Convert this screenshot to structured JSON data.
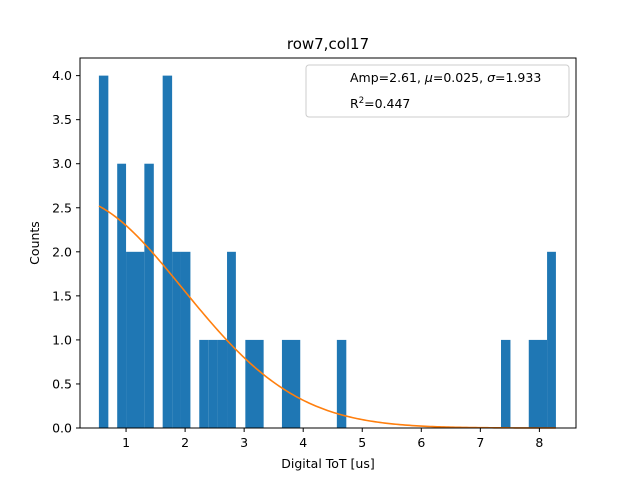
{
  "chart_data": {
    "type": "histogram",
    "title": "row7,col17",
    "xlabel": "Digital ToT [us]",
    "ylabel": "Counts",
    "xlim": [
      0.22,
      8.62
    ],
    "ylim": [
      0,
      4.2
    ],
    "xticks": [
      1,
      2,
      3,
      4,
      5,
      6,
      7,
      8
    ],
    "yticks": [
      0.0,
      0.5,
      1.0,
      1.5,
      2.0,
      2.5,
      3.0,
      3.5,
      4.0
    ],
    "xtick_labels": [
      "1",
      "2",
      "3",
      "4",
      "5",
      "6",
      "7",
      "8"
    ],
    "ytick_labels": [
      "0.0",
      "0.5",
      "1.0",
      "1.5",
      "2.0",
      "2.5",
      "3.0",
      "3.5",
      "4.0"
    ],
    "bar_color": "#1f77b4",
    "bins": [
      {
        "x0": 0.54,
        "x1": 0.7,
        "count": 4
      },
      {
        "x0": 0.85,
        "x1": 1.0,
        "count": 3
      },
      {
        "x0": 1.0,
        "x1": 1.16,
        "count": 2
      },
      {
        "x0": 1.16,
        "x1": 1.31,
        "count": 2
      },
      {
        "x0": 1.31,
        "x1": 1.47,
        "count": 3
      },
      {
        "x0": 1.62,
        "x1": 1.78,
        "count": 4
      },
      {
        "x0": 1.78,
        "x1": 1.93,
        "count": 2
      },
      {
        "x0": 1.93,
        "x1": 2.09,
        "count": 2
      },
      {
        "x0": 2.24,
        "x1": 2.4,
        "count": 1
      },
      {
        "x0": 2.4,
        "x1": 2.55,
        "count": 1
      },
      {
        "x0": 2.55,
        "x1": 2.71,
        "count": 1
      },
      {
        "x0": 2.71,
        "x1": 2.86,
        "count": 2
      },
      {
        "x0": 3.02,
        "x1": 3.33,
        "count": 1
      },
      {
        "x0": 3.64,
        "x1": 3.95,
        "count": 1
      },
      {
        "x0": 4.57,
        "x1": 4.73,
        "count": 1
      },
      {
        "x0": 7.35,
        "x1": 7.51,
        "count": 1
      },
      {
        "x0": 7.82,
        "x1": 8.13,
        "count": 1
      },
      {
        "x0": 8.13,
        "x1": 8.28,
        "count": 2
      }
    ],
    "fit": {
      "color": "#ff7f0e",
      "amp": 2.61,
      "mu": 0.025,
      "sigma": 1.933,
      "x_range": [
        0.54,
        8.28
      ]
    },
    "legend": {
      "position": "upper right",
      "line1": "Amp=2.61, μ=0.025, σ=1.933",
      "line1_parts": {
        "amp": "Amp=2.61, ",
        "mu_sym": "μ",
        "mu_val": "=0.025, ",
        "sigma_sym": "σ",
        "sigma_val": "=1.933"
      },
      "line2": "R²=0.447",
      "line2_parts": {
        "r": "R",
        "sup": "2",
        "val": "=0.447"
      }
    }
  }
}
